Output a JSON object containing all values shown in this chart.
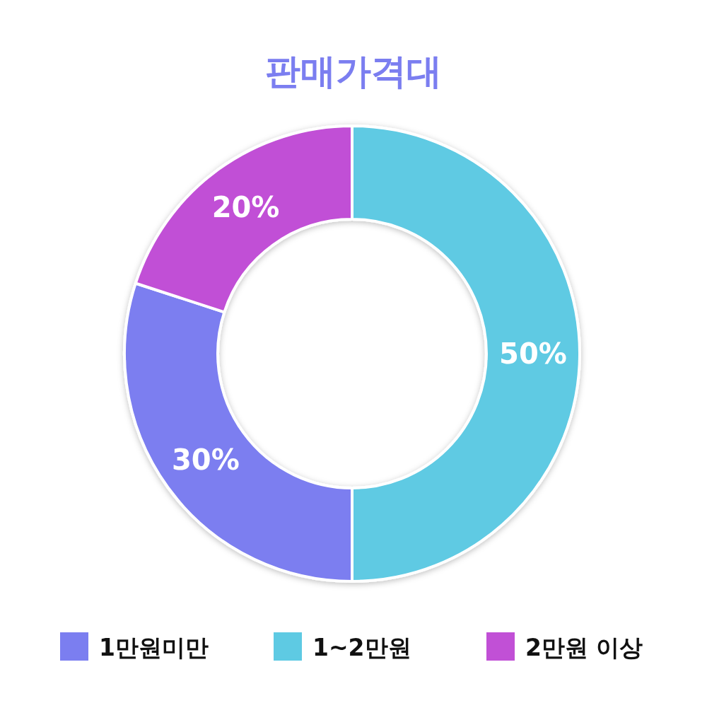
{
  "chart_data": {
    "type": "donut",
    "title": "판매가격대",
    "categories": [
      "1만원미만",
      "1~2만원",
      "2만원 이상"
    ],
    "values": [
      30,
      50,
      20
    ],
    "value_labels": [
      "30%",
      "50%",
      "20%"
    ],
    "colors": [
      "#7b7ef0",
      "#5ecae3",
      "#c150d6"
    ],
    "legend": "bottom"
  }
}
